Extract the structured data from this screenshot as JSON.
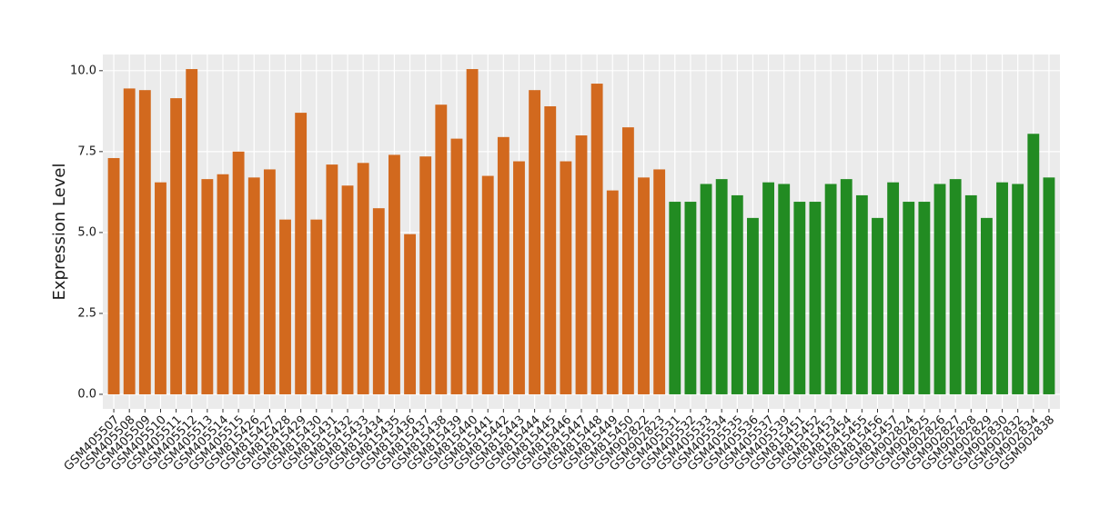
{
  "chart_data": {
    "type": "bar",
    "y_label": "Expression Level",
    "categories": [
      "GSM405507",
      "GSM405508",
      "GSM405509",
      "GSM405510",
      "GSM405511",
      "GSM405512",
      "GSM405513",
      "GSM405514",
      "GSM405515",
      "GSM815426",
      "GSM815427",
      "GSM815428",
      "GSM815429",
      "GSM815430",
      "GSM815431",
      "GSM815432",
      "GSM815433",
      "GSM815434",
      "GSM815435",
      "GSM815436",
      "GSM815437",
      "GSM815438",
      "GSM815439",
      "GSM815440",
      "GSM815441",
      "GSM815442",
      "GSM815443",
      "GSM815444",
      "GSM815445",
      "GSM815446",
      "GSM815447",
      "GSM815448",
      "GSM815449",
      "GSM815450",
      "GSM902822",
      "GSM902823",
      "GSM405531",
      "GSM405532",
      "GSM405533",
      "GSM405534",
      "GSM405535",
      "GSM405536",
      "GSM405537",
      "GSM405539",
      "GSM815451",
      "GSM815452",
      "GSM815453",
      "GSM815454",
      "GSM815455",
      "GSM815456",
      "GSM815457",
      "GSM902824",
      "GSM902825",
      "GSM902826",
      "GSM902827",
      "GSM902828",
      "GSM902829",
      "GSM902830",
      "GSM902832",
      "GSM902834",
      "GSM902838"
    ],
    "values": [
      7.3,
      9.45,
      9.4,
      6.55,
      9.15,
      10.05,
      6.65,
      6.8,
      7.5,
      6.7,
      6.95,
      5.4,
      8.7,
      5.4,
      7.1,
      6.45,
      7.15,
      5.75,
      7.4,
      4.95,
      7.35,
      8.95,
      7.9,
      10.05,
      6.75,
      7.95,
      7.2,
      9.4,
      8.9,
      7.2,
      8.0,
      9.6,
      6.3,
      8.25,
      6.7,
      6.95,
      5.95,
      5.95,
      6.5,
      6.65,
      6.15,
      5.45,
      6.55,
      6.5,
      5.95,
      5.95,
      6.5,
      6.65,
      6.15,
      5.45,
      6.55,
      5.95,
      5.95,
      6.5,
      6.65,
      6.15,
      5.45,
      6.55,
      6.5,
      8.05,
      6.7
    ],
    "colors": [
      "#d2691e",
      "#d2691e",
      "#d2691e",
      "#d2691e",
      "#d2691e",
      "#d2691e",
      "#d2691e",
      "#d2691e",
      "#d2691e",
      "#d2691e",
      "#d2691e",
      "#d2691e",
      "#d2691e",
      "#d2691e",
      "#d2691e",
      "#d2691e",
      "#d2691e",
      "#d2691e",
      "#d2691e",
      "#d2691e",
      "#d2691e",
      "#d2691e",
      "#d2691e",
      "#d2691e",
      "#d2691e",
      "#d2691e",
      "#d2691e",
      "#d2691e",
      "#d2691e",
      "#d2691e",
      "#d2691e",
      "#d2691e",
      "#d2691e",
      "#d2691e",
      "#d2691e",
      "#d2691e",
      "#228b22",
      "#228b22",
      "#228b22",
      "#228b22",
      "#228b22",
      "#228b22",
      "#228b22",
      "#228b22",
      "#228b22",
      "#228b22",
      "#228b22",
      "#228b22",
      "#228b22",
      "#228b22",
      "#228b22",
      "#228b22",
      "#228b22",
      "#228b22",
      "#228b22",
      "#228b22",
      "#228b22",
      "#228b22",
      "#228b22",
      "#228b22",
      "#228b22"
    ],
    "ylim": [
      -0.45,
      10.5
    ],
    "yticks": [
      {
        "value": 0,
        "label": "0.0"
      },
      {
        "value": 2.5,
        "label": "2.5"
      },
      {
        "value": 5,
        "label": "5.0"
      },
      {
        "value": 7.5,
        "label": "7.5"
      },
      {
        "value": 10,
        "label": "10.0"
      }
    ],
    "grid": true
  }
}
